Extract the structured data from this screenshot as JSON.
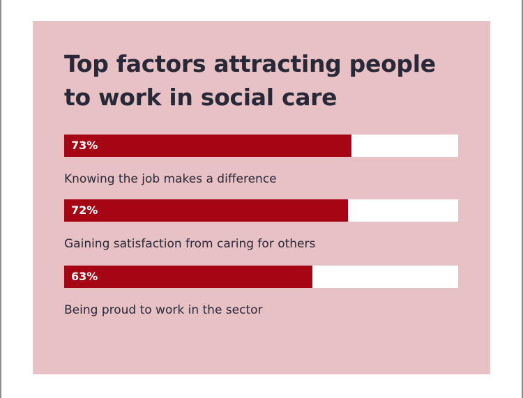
{
  "chart_data": {
    "type": "bar",
    "orientation": "horizontal",
    "title": "Top factors attracting people to work in social care",
    "xlim": [
      0,
      100
    ],
    "colors": {
      "background": "#e8c1c5",
      "bar": "#a60614",
      "track": "#ffffff",
      "text": "#272938"
    },
    "bars": [
      {
        "value": 73,
        "value_label": "73%",
        "label": "Knowing the job makes a difference"
      },
      {
        "value": 72,
        "value_label": "72%",
        "label": "Gaining satisfaction from caring for others"
      },
      {
        "value": 63,
        "value_label": "63%",
        "label": "Being proud to work in the sector"
      }
    ]
  }
}
